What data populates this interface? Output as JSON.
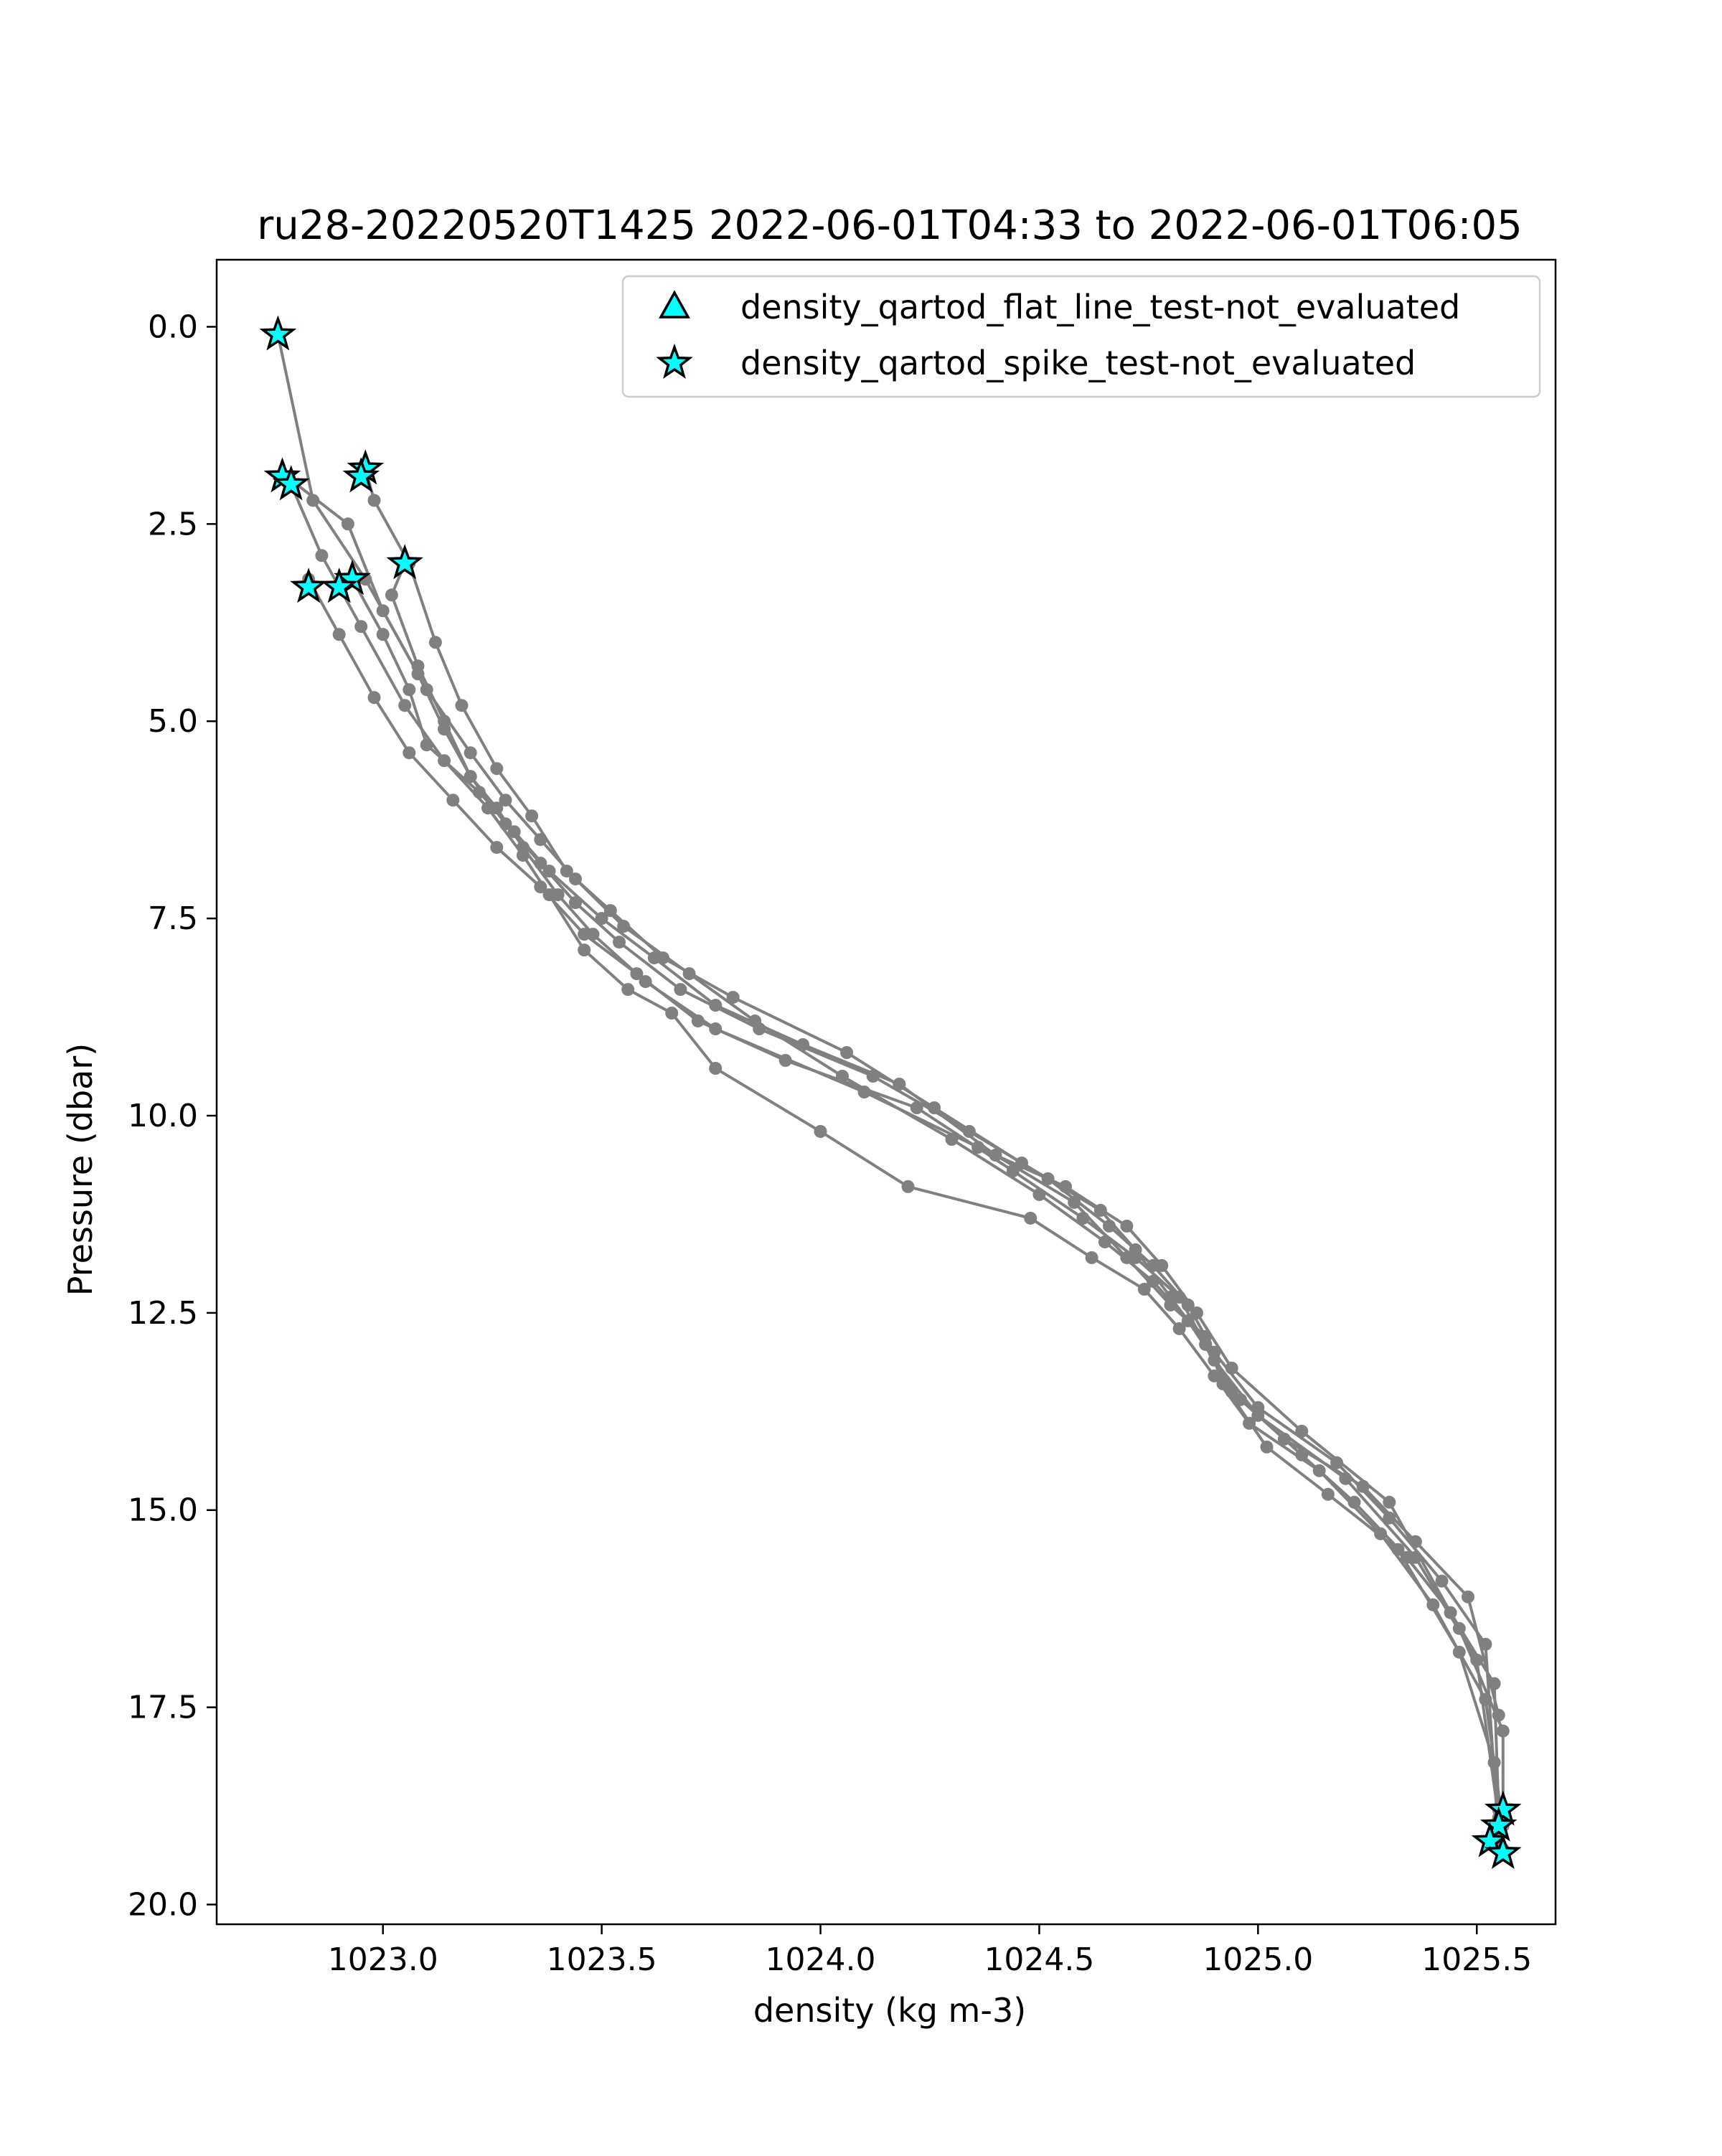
{
  "chart_data": {
    "type": "line",
    "title": "ru28-20220520T1425 2022-06-01T04:33 to 2022-06-01T06:05",
    "xlabel": "density (kg m-3)",
    "ylabel": "Pressure (dbar)",
    "xlim": [
      1022.62,
      1025.68
    ],
    "ylim": [
      20.25,
      -0.85
    ],
    "y_inverted": true,
    "grid": false,
    "legend_position": "top-right",
    "x_ticks": [
      1023.0,
      1023.5,
      1024.0,
      1024.5,
      1025.0,
      1025.5
    ],
    "x_tick_labels": [
      "1023.0",
      "1023.5",
      "1024.0",
      "1024.5",
      "1025.0",
      "1025.5"
    ],
    "y_ticks": [
      0.0,
      2.5,
      5.0,
      7.5,
      10.0,
      12.5,
      15.0,
      17.5,
      20.0
    ],
    "y_tick_labels": [
      "0.0",
      "2.5",
      "5.0",
      "7.5",
      "10.0",
      "12.5",
      "15.0",
      "17.5",
      "20.0"
    ],
    "colors": {
      "profile_line": "#808080",
      "flag_fill": "#00ffff",
      "flag_edge": "#000000",
      "legend_border": "#cccccc"
    },
    "legend": [
      {
        "label": "density_qartod_flat_line_test-not_evaluated",
        "marker": "triangle"
      },
      {
        "label": "density_qartod_spike_test-not_evaluated",
        "marker": "star"
      }
    ],
    "series": [
      {
        "x": [
          1022.76,
          1022.84,
          1022.96,
          1023.08,
          1023.14,
          1023.2,
          1023.26,
          1023.32,
          1023.4,
          1023.48,
          1023.6,
          1023.76,
          1024.1,
          1024.36,
          1024.56,
          1024.7,
          1024.78,
          1024.86,
          1024.94,
          1025.1,
          1025.3,
          1025.46,
          1025.56,
          1025.56
        ],
        "y": [
          0.1,
          2.2,
          3.2,
          4.4,
          5.1,
          5.7,
          6.1,
          6.6,
          7.2,
          7.7,
          8.3,
          8.9,
          9.7,
          10.4,
          10.9,
          11.4,
          11.9,
          12.5,
          13.2,
          14.0,
          14.9,
          16.5,
          17.8,
          19.3
        ]
      },
      {
        "x": [
          1022.78,
          1022.92,
          1023.0,
          1023.1,
          1023.2,
          1023.28,
          1023.36,
          1023.44,
          1023.55,
          1023.7,
          1023.85,
          1024.05,
          1024.3,
          1024.5,
          1024.65,
          1024.76,
          1024.84,
          1024.9,
          1025.0,
          1025.2,
          1025.36,
          1025.5,
          1025.55
        ],
        "y": [
          1.9,
          2.5,
          3.6,
          4.6,
          5.4,
          6.0,
          6.5,
          7.0,
          7.6,
          8.2,
          8.8,
          9.5,
          10.3,
          11.0,
          11.6,
          12.1,
          12.6,
          13.1,
          13.8,
          14.6,
          15.6,
          16.9,
          18.9
        ]
      },
      {
        "x": [
          1022.79,
          1022.86,
          1022.95,
          1023.05,
          1023.14,
          1023.24,
          1023.32,
          1023.38,
          1023.46,
          1023.56,
          1023.66,
          1023.76,
          1024.0,
          1024.2,
          1024.48,
          1024.62,
          1024.74,
          1024.82,
          1024.9,
          1024.98,
          1025.14,
          1025.28,
          1025.4,
          1025.52,
          1025.56
        ],
        "y": [
          2.0,
          2.9,
          3.8,
          4.8,
          5.5,
          6.1,
          6.7,
          7.2,
          7.9,
          8.4,
          8.7,
          9.4,
          10.2,
          10.9,
          11.3,
          11.8,
          12.2,
          12.7,
          13.3,
          13.9,
          14.5,
          15.3,
          16.2,
          17.4,
          19.0
        ]
      },
      {
        "x": [
          1022.96,
          1022.98,
          1023.06,
          1023.12,
          1023.18,
          1023.26,
          1023.34,
          1023.42,
          1023.52,
          1023.64,
          1023.8,
          1024.06,
          1024.26,
          1024.46,
          1024.64,
          1024.72,
          1024.8,
          1024.88,
          1024.96,
          1025.1,
          1025.22,
          1025.34,
          1025.44,
          1025.54,
          1025.55
        ],
        "y": [
          1.8,
          2.2,
          3.0,
          4.0,
          4.8,
          5.6,
          6.2,
          6.9,
          7.4,
          8.0,
          8.5,
          9.2,
          9.9,
          10.6,
          11.2,
          11.7,
          12.3,
          12.9,
          13.6,
          14.3,
          14.9,
          15.6,
          16.3,
          17.2,
          18.8
        ]
      },
      {
        "x": [
          1022.93,
          1023.0,
          1023.06,
          1023.1,
          1023.22,
          1023.3,
          1023.38,
          1023.5,
          1023.62,
          1023.76,
          1023.96,
          1024.18,
          1024.4,
          1024.58,
          1024.7,
          1024.8,
          1024.88,
          1024.92,
          1025.02,
          1025.16,
          1025.32,
          1025.46,
          1025.54
        ],
        "y": [
          3.2,
          3.9,
          4.6,
          5.3,
          5.9,
          6.4,
          6.9,
          7.5,
          8.0,
          8.6,
          9.1,
          9.6,
          10.5,
          11.1,
          11.8,
          12.4,
          12.8,
          13.4,
          14.2,
          14.8,
          15.5,
          16.8,
          18.2
        ]
      },
      {
        "x": [
          1023.05,
          1023.02,
          1023.08,
          1023.14,
          1023.2,
          1023.28,
          1023.36,
          1023.44,
          1023.54,
          1023.68,
          1023.86,
          1024.12,
          1024.34,
          1024.52,
          1024.66,
          1024.76,
          1024.84,
          1024.9,
          1025.0,
          1025.18,
          1025.3,
          1025.42,
          1025.52,
          1025.55
        ],
        "y": [
          3.0,
          3.4,
          4.3,
          5.0,
          5.7,
          6.3,
          6.8,
          7.3,
          7.8,
          8.4,
          8.9,
          9.5,
          10.2,
          10.8,
          11.4,
          11.9,
          12.4,
          13.0,
          13.7,
          14.4,
          15.1,
          15.9,
          16.7,
          19.2
        ]
      },
      {
        "x": [
          1022.83,
          1022.9,
          1022.98,
          1023.06,
          1023.16,
          1023.26,
          1023.36,
          1023.46,
          1023.58,
          1023.72,
          1023.92,
          1024.22,
          1024.44,
          1024.6,
          1024.72,
          1024.82,
          1024.88,
          1024.94,
          1025.06,
          1025.24,
          1025.36,
          1025.48,
          1025.55
        ],
        "y": [
          3.2,
          3.9,
          4.7,
          5.4,
          6.0,
          6.6,
          7.1,
          7.7,
          8.2,
          8.8,
          9.3,
          9.9,
          10.7,
          11.3,
          11.8,
          12.3,
          12.9,
          13.5,
          14.1,
          14.7,
          15.4,
          16.1,
          17.6
        ]
      }
    ],
    "flagged_points": [
      {
        "test": "density_qartod_spike_test-not_evaluated",
        "x": 1022.76,
        "y": 0.1
      },
      {
        "test": "density_qartod_spike_test-not_evaluated",
        "x": 1022.77,
        "y": 1.9
      },
      {
        "test": "density_qartod_spike_test-not_evaluated",
        "x": 1022.79,
        "y": 2.0
      },
      {
        "test": "density_qartod_spike_test-not_evaluated",
        "x": 1022.96,
        "y": 1.8
      },
      {
        "test": "density_qartod_spike_test-not_evaluated",
        "x": 1022.95,
        "y": 1.9
      },
      {
        "test": "density_qartod_spike_test-not_evaluated",
        "x": 1023.05,
        "y": 3.0
      },
      {
        "test": "density_qartod_spike_test-not_evaluated",
        "x": 1022.93,
        "y": 3.2
      },
      {
        "test": "density_qartod_spike_test-not_evaluated",
        "x": 1022.83,
        "y": 3.3
      },
      {
        "test": "density_qartod_spike_test-not_evaluated",
        "x": 1022.9,
        "y": 3.3
      },
      {
        "test": "density_qartod_spike_test-not_evaluated",
        "x": 1025.56,
        "y": 18.8
      },
      {
        "test": "density_qartod_spike_test-not_evaluated",
        "x": 1025.55,
        "y": 19.0
      },
      {
        "test": "density_qartod_spike_test-not_evaluated",
        "x": 1025.53,
        "y": 19.2
      },
      {
        "test": "density_qartod_spike_test-not_evaluated",
        "x": 1025.56,
        "y": 19.35
      }
    ]
  }
}
